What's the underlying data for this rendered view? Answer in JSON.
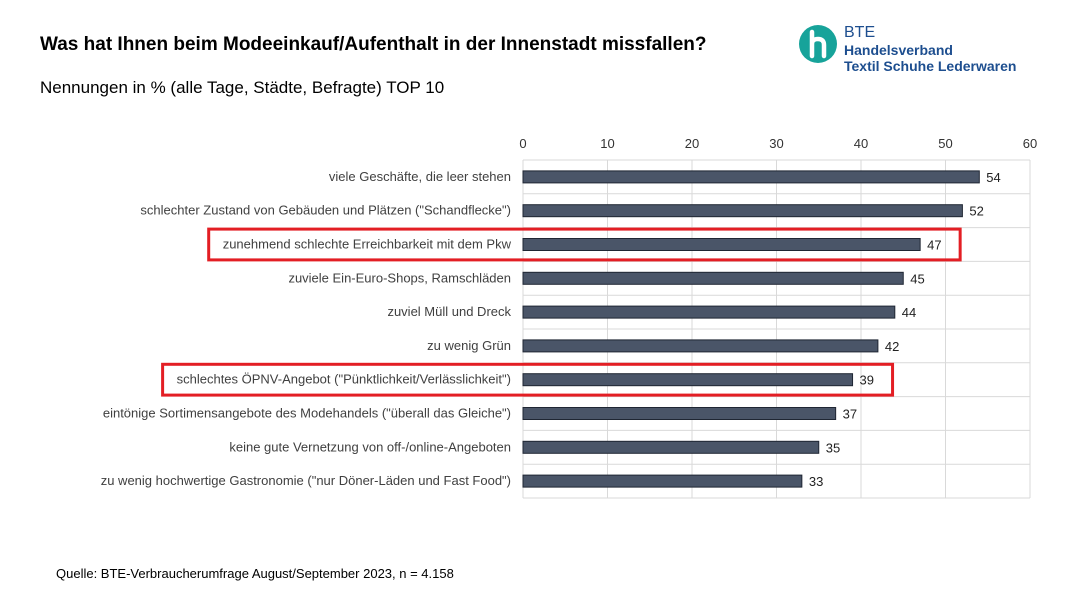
{
  "header": {
    "title": "Was hat Ihnen beim Modeeinkauf/Aufenthalt in der Innenstadt missfallen?",
    "subtitle": "Nennungen in % (alle Tage, Städte, Befragte) TOP 10"
  },
  "logo": {
    "line1": "BTE",
    "line2": "Handelsverband",
    "line3": "Textil Schuhe Lederwaren",
    "icon": "bte-h-logo-icon",
    "color_teal": "#17a39a",
    "color_blue": "#1d4e8f"
  },
  "source": "Quelle: BTE-Verbraucherumfrage August/September 2023, n = 4.158",
  "chart_data": {
    "type": "bar",
    "orientation": "horizontal",
    "categories": [
      "viele Geschäfte, die leer stehen",
      "schlechter Zustand von Gebäuden und Plätzen (\"Schandflecke\")",
      "zunehmend schlechte Erreichbarkeit mit dem Pkw",
      "zuviele Ein-Euro-Shops, Ramschläden",
      "zuviel Müll und Dreck",
      "zu wenig Grün",
      "schlechtes ÖPNV-Angebot (\"Pünktlichkeit/Verlässlichkeit\")",
      "eintönige Sortimensangebote des Modehandels (\"überall das Gleiche\")",
      "keine gute Vernetzung von off-/online-Angeboten",
      "zu wenig hochwertige Gastronomie (\"nur Döner-Läden und Fast Food\")"
    ],
    "values": [
      54,
      52,
      47,
      45,
      44,
      42,
      39,
      37,
      35,
      33
    ],
    "xlim": [
      0,
      60
    ],
    "ticks": [
      0,
      10,
      20,
      30,
      40,
      50,
      60
    ],
    "x_axis_position": "top",
    "grid": true,
    "highlighted_categories": [
      2,
      6
    ],
    "bar_color": "#4a5568",
    "highlight_color": "#e31e24",
    "grid_color": "#d9d9d9"
  }
}
